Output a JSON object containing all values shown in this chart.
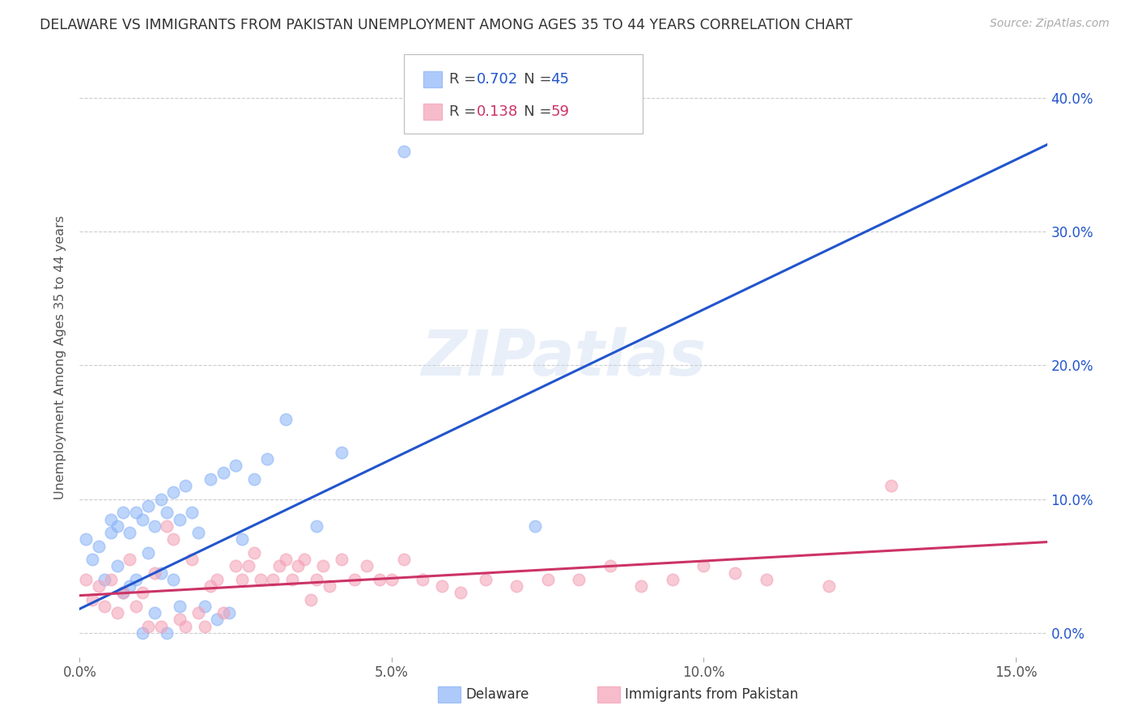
{
  "title": "DELAWARE VS IMMIGRANTS FROM PAKISTAN UNEMPLOYMENT AMONG AGES 35 TO 44 YEARS CORRELATION CHART",
  "source": "Source: ZipAtlas.com",
  "ylabel": "Unemployment Among Ages 35 to 44 years",
  "xlim": [
    0.0,
    0.155
  ],
  "ylim": [
    -0.018,
    0.43
  ],
  "delaware_R": "0.702",
  "delaware_N": "45",
  "pakistan_R": "0.138",
  "pakistan_N": "59",
  "delaware_color": "#8ab4f8",
  "delaware_line_color": "#2255cc",
  "pakistan_color": "#f4a0b5",
  "pakistan_line_color": "#cc3366",
  "watermark": "ZIPatlas",
  "background_color": "#ffffff",
  "grid_color": "#cccccc",
  "delaware_points_x": [
    0.001,
    0.002,
    0.003,
    0.004,
    0.005,
    0.005,
    0.006,
    0.006,
    0.007,
    0.007,
    0.008,
    0.008,
    0.009,
    0.009,
    0.01,
    0.01,
    0.011,
    0.011,
    0.012,
    0.012,
    0.013,
    0.013,
    0.014,
    0.014,
    0.015,
    0.015,
    0.016,
    0.016,
    0.017,
    0.018,
    0.019,
    0.02,
    0.021,
    0.022,
    0.023,
    0.024,
    0.025,
    0.026,
    0.028,
    0.03,
    0.033,
    0.038,
    0.042,
    0.052,
    0.073
  ],
  "delaware_points_y": [
    0.07,
    0.055,
    0.065,
    0.04,
    0.075,
    0.085,
    0.05,
    0.08,
    0.03,
    0.09,
    0.035,
    0.075,
    0.04,
    0.09,
    0.0,
    0.085,
    0.06,
    0.095,
    0.015,
    0.08,
    0.045,
    0.1,
    0.0,
    0.09,
    0.04,
    0.105,
    0.02,
    0.085,
    0.11,
    0.09,
    0.075,
    0.02,
    0.115,
    0.01,
    0.12,
    0.015,
    0.125,
    0.07,
    0.115,
    0.13,
    0.16,
    0.08,
    0.135,
    0.36,
    0.08
  ],
  "pakistan_points_x": [
    0.001,
    0.002,
    0.003,
    0.004,
    0.005,
    0.006,
    0.007,
    0.008,
    0.009,
    0.01,
    0.011,
    0.012,
    0.013,
    0.014,
    0.015,
    0.016,
    0.017,
    0.018,
    0.019,
    0.02,
    0.021,
    0.022,
    0.023,
    0.025,
    0.026,
    0.027,
    0.028,
    0.029,
    0.031,
    0.032,
    0.033,
    0.034,
    0.035,
    0.036,
    0.037,
    0.038,
    0.039,
    0.04,
    0.042,
    0.044,
    0.046,
    0.048,
    0.05,
    0.052,
    0.055,
    0.058,
    0.061,
    0.065,
    0.07,
    0.075,
    0.08,
    0.085,
    0.09,
    0.095,
    0.1,
    0.105,
    0.11,
    0.12,
    0.13
  ],
  "pakistan_points_y": [
    0.04,
    0.025,
    0.035,
    0.02,
    0.04,
    0.015,
    0.03,
    0.055,
    0.02,
    0.03,
    0.005,
    0.045,
    0.005,
    0.08,
    0.07,
    0.01,
    0.005,
    0.055,
    0.015,
    0.005,
    0.035,
    0.04,
    0.015,
    0.05,
    0.04,
    0.05,
    0.06,
    0.04,
    0.04,
    0.05,
    0.055,
    0.04,
    0.05,
    0.055,
    0.025,
    0.04,
    0.05,
    0.035,
    0.055,
    0.04,
    0.05,
    0.04,
    0.04,
    0.055,
    0.04,
    0.035,
    0.03,
    0.04,
    0.035,
    0.04,
    0.04,
    0.05,
    0.035,
    0.04,
    0.05,
    0.045,
    0.04,
    0.035,
    0.11
  ],
  "delaware_line": {
    "x0": 0.0,
    "y0": 0.018,
    "x1": 0.155,
    "y1": 0.365
  },
  "pakistan_line": {
    "x0": 0.0,
    "y0": 0.028,
    "x1": 0.155,
    "y1": 0.068
  },
  "x_tick_vals": [
    0.0,
    0.05,
    0.1,
    0.15
  ],
  "x_tick_labels": [
    "0.0%",
    "5.0%",
    "10.0%",
    "15.0%"
  ],
  "y_tick_vals": [
    0.0,
    0.1,
    0.2,
    0.3,
    0.4
  ],
  "y_tick_labels": [
    "0.0%",
    "10.0%",
    "20.0%",
    "30.0%",
    "40.0%"
  ]
}
